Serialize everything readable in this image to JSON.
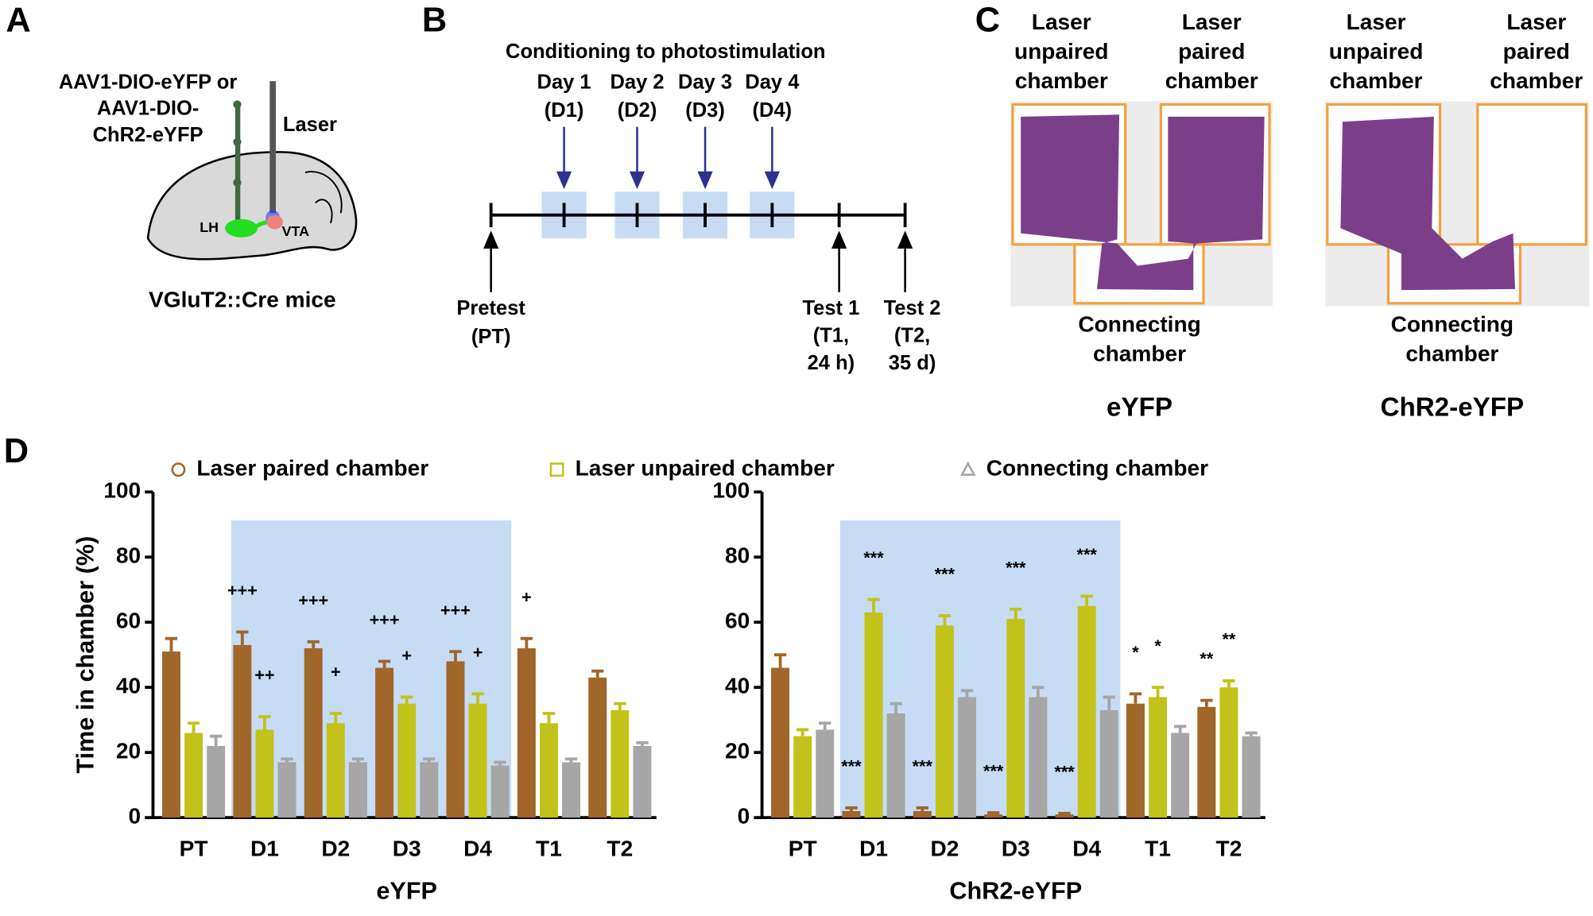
{
  "panel_a": {
    "label": "A",
    "virus": [
      "AAV1-DIO-eYFP or",
      "AAV1-DIO-",
      "ChR2-eYFP"
    ],
    "laser": "Laser",
    "regions": [
      "LH",
      "VTA"
    ],
    "caption": "VGluT2::Cre mice"
  },
  "panel_b": {
    "label": "B",
    "title": "Conditioning to photostimulation",
    "days": [
      [
        "Day 1",
        "(D1)"
      ],
      [
        "Day 2",
        "(D2)"
      ],
      [
        "Day 3",
        "(D3)"
      ],
      [
        "Day 4",
        "(D4)"
      ]
    ],
    "pretest": [
      "Pretest",
      "(PT)"
    ],
    "tests": [
      [
        "Test 1",
        "(T1,",
        "24 h)"
      ],
      [
        "Test 2",
        "(T2,",
        "35 d)"
      ]
    ]
  },
  "panel_c": {
    "label": "C",
    "mazes": [
      {
        "unpaired": [
          "Laser",
          "unpaired",
          "chamber"
        ],
        "paired": [
          "Laser",
          "paired",
          "chamber"
        ],
        "connecting": [
          "Connecting",
          "chamber"
        ],
        "caption": "eYFP"
      },
      {
        "unpaired": [
          "Laser",
          "unpaired",
          "chamber"
        ],
        "paired": [
          "Laser",
          "paired",
          "chamber"
        ],
        "connecting": [
          "Connecting",
          "chamber"
        ],
        "caption": "ChR2-eYFP"
      }
    ]
  },
  "panel_d_label": "D",
  "chart_data": [
    {
      "type": "bar",
      "ylabel": "Time in chamber (%)",
      "xlabel": "eYFP",
      "categories": [
        "PT",
        "D1",
        "D2",
        "D3",
        "D4",
        "T1",
        "T2"
      ],
      "series": [
        {
          "name": "Laser paired chamber",
          "color": "#a0662a",
          "values": [
            51,
            53,
            52,
            46,
            48,
            52,
            43
          ],
          "errors": [
            4,
            4,
            2,
            2,
            3,
            3,
            2
          ]
        },
        {
          "name": "Laser unpaired chamber",
          "color": "#c2c21a",
          "values": [
            26,
            27,
            29,
            35,
            35,
            29,
            33
          ],
          "errors": [
            3,
            4,
            3,
            2,
            3,
            3,
            2
          ]
        },
        {
          "name": "Connecting chamber",
          "color": "#a6a6a6",
          "values": [
            22,
            17,
            17,
            17,
            16,
            17,
            22
          ],
          "errors": [
            3,
            1,
            1,
            1,
            1,
            1,
            1
          ]
        }
      ],
      "ylim": [
        0,
        100
      ],
      "yticks": [
        0,
        20,
        40,
        60,
        80,
        100
      ],
      "shaded": [
        "D1",
        "D4"
      ],
      "annotations": [
        {
          "category": "D1",
          "series": 0,
          "text": "+++"
        },
        {
          "category": "D1",
          "series": 1,
          "text": "++"
        },
        {
          "category": "D2",
          "series": 0,
          "text": "+++"
        },
        {
          "category": "D2",
          "series": 1,
          "text": "+"
        },
        {
          "category": "D3",
          "series": 0,
          "text": "+++"
        },
        {
          "category": "D3",
          "series": 1,
          "text": "+"
        },
        {
          "category": "D4",
          "series": 0,
          "text": "+++"
        },
        {
          "category": "D4",
          "series": 1,
          "text": "+"
        },
        {
          "category": "T1",
          "series": 0,
          "text": "+"
        }
      ]
    },
    {
      "type": "bar",
      "xlabel": "ChR2-eYFP",
      "categories": [
        "PT",
        "D1",
        "D2",
        "D3",
        "D4",
        "T1",
        "T2"
      ],
      "series": [
        {
          "color": "#a0662a",
          "values": [
            46,
            2,
            2,
            1,
            1,
            35,
            34
          ],
          "errors": [
            4,
            1,
            1,
            0.5,
            0.3,
            3,
            2
          ]
        },
        {
          "color": "#c2c21a",
          "values": [
            25,
            63,
            59,
            61,
            65,
            37,
            40
          ],
          "errors": [
            2,
            4,
            3,
            3,
            3,
            3,
            2
          ]
        },
        {
          "color": "#a6a6a6",
          "values": [
            27,
            32,
            37,
            37,
            33,
            26,
            25
          ],
          "errors": [
            2,
            3,
            2,
            3,
            4,
            2,
            1
          ]
        }
      ],
      "ylim": [
        0,
        100
      ],
      "yticks": [
        0,
        20,
        40,
        60,
        80,
        100
      ],
      "shaded": [
        "D1",
        "D4"
      ],
      "annotations": [
        {
          "category": "D1",
          "series": 0,
          "text": "***"
        },
        {
          "category": "D1",
          "series": 1,
          "text": "***"
        },
        {
          "category": "D2",
          "series": 0,
          "text": "***"
        },
        {
          "category": "D2",
          "series": 1,
          "text": "***"
        },
        {
          "category": "D3",
          "series": 0,
          "text": "***"
        },
        {
          "category": "D3",
          "series": 1,
          "text": "***"
        },
        {
          "category": "D4",
          "series": 0,
          "text": "***"
        },
        {
          "category": "D4",
          "series": 1,
          "text": "***"
        },
        {
          "category": "T1",
          "series": 0,
          "text": "*"
        },
        {
          "category": "T1",
          "series": 1,
          "text": "*"
        },
        {
          "category": "T2",
          "series": 0,
          "text": "**"
        },
        {
          "category": "T2",
          "series": 1,
          "text": "**"
        }
      ]
    }
  ]
}
